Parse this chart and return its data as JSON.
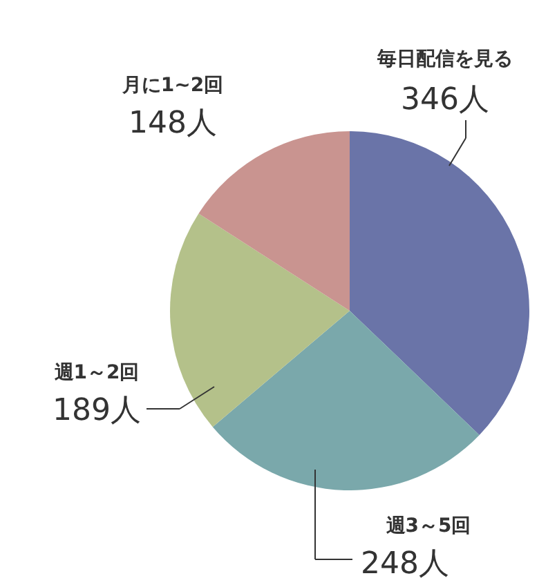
{
  "chart_data": {
    "type": "pie",
    "categories": [
      "毎日配信を見る",
      "週3～5回",
      "週1～2回",
      "月に1~2回"
    ],
    "values": [
      346,
      248,
      189,
      148
    ],
    "colors": [
      "#6a74a8",
      "#7aa8ab",
      "#b4c18a",
      "#c99490"
    ],
    "value_labels": [
      "346人",
      "248人",
      "189人",
      "148人"
    ]
  }
}
